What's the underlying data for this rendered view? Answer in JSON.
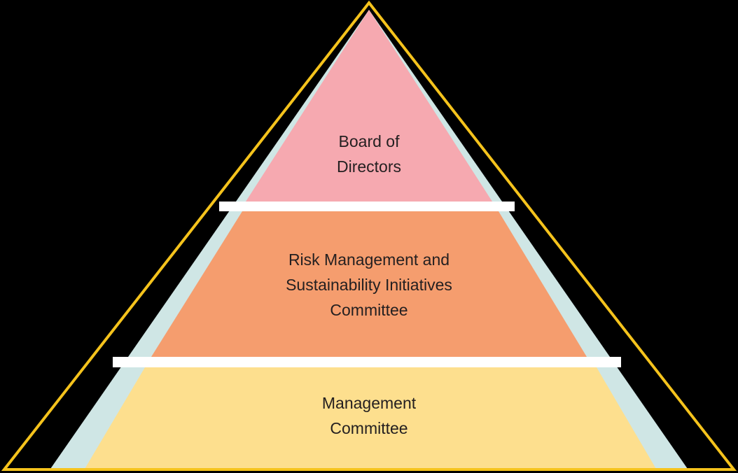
{
  "colors": {
    "background": "#000000",
    "outline": "#f5c31c",
    "shadow": "#cfe6e5",
    "separator": "#ffffff",
    "text": "#231f20",
    "tier_top": "#f6a9b0",
    "tier_middle": "#f59d6e",
    "tier_bottom": "#fddf8e"
  },
  "tiers": [
    {
      "label": "Board of\nDirectors"
    },
    {
      "label": "Risk Management and\nSustainability Initiatives\nCommittee"
    },
    {
      "label": "Management\nCommittee"
    }
  ]
}
